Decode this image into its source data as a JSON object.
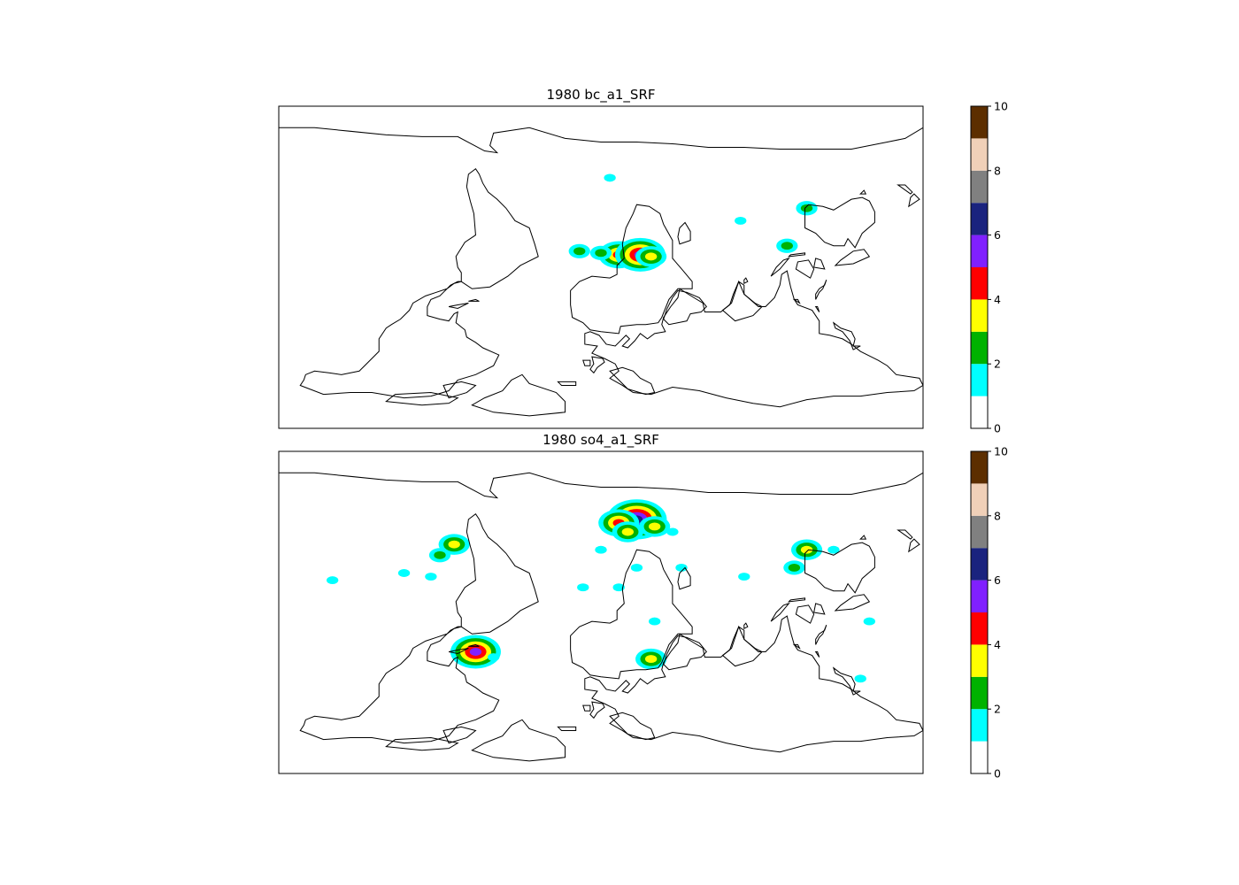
{
  "panels": [
    {
      "title": "1980 bc_a1_SRF",
      "colorbar": {
        "ticks": [
          "0",
          "2",
          "4",
          "6",
          "8",
          "10"
        ]
      },
      "hotspots": [
        {
          "lon": 10,
          "lat": 7,
          "level": 4
        },
        {
          "lon": 22,
          "lat": 7,
          "level": 5
        },
        {
          "lon": 28,
          "lat": 6,
          "level": 3
        },
        {
          "lon": 0,
          "lat": 8,
          "level": 2
        },
        {
          "lon": -12,
          "lat": 9,
          "level": 2
        },
        {
          "lon": 115,
          "lat": 33,
          "level": 2
        },
        {
          "lon": 104,
          "lat": 12,
          "level": 2
        },
        {
          "lon": 78,
          "lat": 26,
          "level": 1
        },
        {
          "lon": 5,
          "lat": 50,
          "level": 1
        }
      ]
    },
    {
      "title": "1980 so4_a1_SRF",
      "colorbar": {
        "ticks": [
          "0",
          "2",
          "4",
          "6",
          "8",
          "10"
        ]
      },
      "hotspots": [
        {
          "lon": 20,
          "lat": 52,
          "level": 6
        },
        {
          "lon": 10,
          "lat": 50,
          "level": 4
        },
        {
          "lon": 30,
          "lat": 48,
          "level": 3
        },
        {
          "lon": 15,
          "lat": 45,
          "level": 3
        },
        {
          "lon": 40,
          "lat": 45,
          "level": 1
        },
        {
          "lon": 0,
          "lat": 35,
          "level": 1
        },
        {
          "lon": 20,
          "lat": 25,
          "level": 1
        },
        {
          "lon": 45,
          "lat": 25,
          "level": 1
        },
        {
          "lon": -10,
          "lat": 14,
          "level": 1
        },
        {
          "lon": 10,
          "lat": 14,
          "level": 1
        },
        {
          "lon": 80,
          "lat": 20,
          "level": 1
        },
        {
          "lon": 115,
          "lat": 35,
          "level": 3
        },
        {
          "lon": 108,
          "lat": 25,
          "level": 2
        },
        {
          "lon": 130,
          "lat": 35,
          "level": 1
        },
        {
          "lon": -82,
          "lat": 38,
          "level": 3
        },
        {
          "lon": -90,
          "lat": 32,
          "level": 2
        },
        {
          "lon": -95,
          "lat": 20,
          "level": 1
        },
        {
          "lon": -110,
          "lat": 22,
          "level": 1
        },
        {
          "lon": -70,
          "lat": -22,
          "level": 5
        },
        {
          "lon": -60,
          "lat": -25,
          "level": 1
        },
        {
          "lon": 28,
          "lat": -26,
          "level": 3
        },
        {
          "lon": 30,
          "lat": -5,
          "level": 1
        },
        {
          "lon": 145,
          "lat": -37,
          "level": 1
        },
        {
          "lon": -150,
          "lat": 18,
          "level": 1
        },
        {
          "lon": 150,
          "lat": -5,
          "level": 1
        }
      ]
    }
  ],
  "colormap": [
    "#ffffff",
    "#00ffff",
    "#00b200",
    "#ffff00",
    "#ff0000",
    "#8020ff",
    "#1a237e",
    "#808080",
    "#f0d0b8",
    "#5c2e00"
  ],
  "colorbar_range": [
    0,
    10
  ]
}
